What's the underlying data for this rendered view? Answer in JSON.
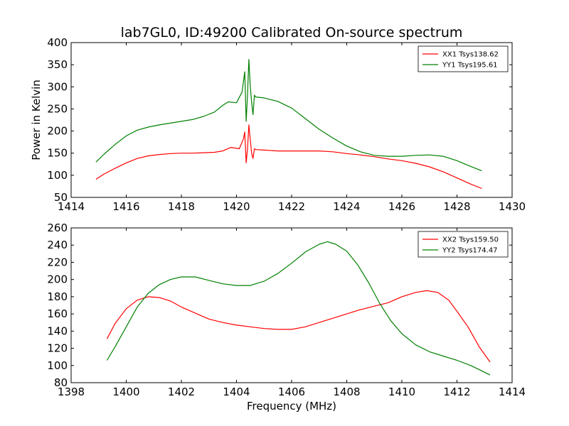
{
  "figure": {
    "title": "lab7GL0, ID:49200 Calibrated On-source spectrum",
    "ylabel": "Power in Kelvin",
    "xlabel": "Frequency (MHz)"
  },
  "chart_data": [
    {
      "type": "line",
      "title": "lab7GL0, ID:49200 Calibrated On-source spectrum",
      "xlabel": "",
      "ylabel": "Power in Kelvin",
      "xlim": [
        1414,
        1430
      ],
      "ylim": [
        50,
        400
      ],
      "xticks": [
        1414,
        1416,
        1418,
        1420,
        1422,
        1424,
        1426,
        1428,
        1430
      ],
      "yticks": [
        50,
        100,
        150,
        200,
        250,
        300,
        350,
        400
      ],
      "legend": "top-right",
      "grid": false,
      "series": [
        {
          "name": "XX1 Tsys138.62",
          "color": "#ff0000",
          "x": [
            1414.9,
            1415.2,
            1415.6,
            1416.0,
            1416.4,
            1416.8,
            1417.2,
            1417.6,
            1418.0,
            1418.4,
            1418.8,
            1419.2,
            1419.5,
            1419.8,
            1420.1,
            1420.25,
            1420.3,
            1420.35,
            1420.4,
            1420.45,
            1420.5,
            1420.55,
            1420.6,
            1420.65,
            1420.7,
            1421.0,
            1421.5,
            1422.0,
            1422.5,
            1423.0,
            1423.5,
            1424.0,
            1424.5,
            1425.0,
            1425.5,
            1426.0,
            1426.5,
            1427.0,
            1427.5,
            1428.0,
            1428.5,
            1428.9
          ],
          "y": [
            91,
            103,
            116,
            128,
            138,
            144,
            147,
            149,
            150,
            150,
            151,
            152,
            155,
            163,
            160,
            182,
            198,
            128,
            160,
            214,
            180,
            150,
            138,
            160,
            158,
            157,
            155,
            155,
            155,
            155,
            153,
            149,
            146,
            142,
            137,
            133,
            127,
            119,
            108,
            94,
            80,
            70
          ]
        },
        {
          "name": "YY1 Tsys195.61",
          "color": "#008000",
          "x": [
            1414.9,
            1415.2,
            1415.6,
            1416.0,
            1416.4,
            1416.8,
            1417.2,
            1417.6,
            1418.0,
            1418.4,
            1418.8,
            1419.2,
            1419.5,
            1419.7,
            1420.0,
            1420.2,
            1420.3,
            1420.35,
            1420.4,
            1420.45,
            1420.5,
            1420.55,
            1420.6,
            1420.65,
            1420.7,
            1421.0,
            1421.5,
            1422.0,
            1422.5,
            1423.0,
            1423.5,
            1424.0,
            1424.5,
            1425.0,
            1425.5,
            1426.0,
            1426.5,
            1427.0,
            1427.5,
            1428.0,
            1428.5,
            1428.9
          ],
          "y": [
            130,
            148,
            170,
            189,
            202,
            209,
            214,
            218,
            222,
            226,
            233,
            243,
            258,
            266,
            264,
            288,
            334,
            222,
            282,
            362,
            300,
            265,
            237,
            281,
            277,
            275,
            267,
            252,
            228,
            204,
            184,
            166,
            153,
            145,
            143,
            143,
            145,
            146,
            143,
            133,
            120,
            110
          ]
        }
      ]
    },
    {
      "type": "line",
      "title": "",
      "xlabel": "Frequency (MHz)",
      "ylabel": "",
      "xlim": [
        1398,
        1414
      ],
      "ylim": [
        80,
        260
      ],
      "xticks": [
        1398,
        1400,
        1402,
        1404,
        1406,
        1408,
        1410,
        1412,
        1414
      ],
      "yticks": [
        80,
        100,
        120,
        140,
        160,
        180,
        200,
        220,
        240,
        260
      ],
      "legend": "top-right",
      "grid": false,
      "series": [
        {
          "name": "XX2 Tsys159.50",
          "color": "#ff0000",
          "x": [
            1399.3,
            1399.6,
            1400.0,
            1400.4,
            1400.8,
            1401.2,
            1401.6,
            1402.0,
            1402.5,
            1403.0,
            1403.5,
            1404.0,
            1404.5,
            1405.0,
            1405.5,
            1406.0,
            1406.5,
            1407.0,
            1407.5,
            1408.0,
            1408.5,
            1409.0,
            1409.5,
            1410.0,
            1410.5,
            1410.9,
            1411.3,
            1411.7,
            1412.0,
            1412.4,
            1412.8,
            1413.2
          ],
          "y": [
            131,
            149,
            166,
            176,
            180,
            179,
            175,
            168,
            161,
            154,
            150,
            147,
            145,
            143,
            142,
            142,
            145,
            150,
            155,
            160,
            165,
            169,
            173,
            180,
            185,
            187,
            185,
            176,
            163,
            145,
            122,
            104
          ]
        },
        {
          "name": "YY2 Tsys174.47",
          "color": "#008000",
          "x": [
            1399.3,
            1399.6,
            1400.0,
            1400.4,
            1400.8,
            1401.2,
            1401.6,
            1402.0,
            1402.5,
            1403.0,
            1403.5,
            1404.0,
            1404.5,
            1405.0,
            1405.5,
            1406.0,
            1406.5,
            1407.0,
            1407.3,
            1407.6,
            1408.0,
            1408.4,
            1408.8,
            1409.2,
            1409.6,
            1410.0,
            1410.5,
            1411.0,
            1411.5,
            1412.0,
            1412.5,
            1413.2
          ],
          "y": [
            106,
            122,
            145,
            168,
            184,
            194,
            200,
            203,
            203,
            199,
            195,
            193,
            193,
            198,
            207,
            219,
            232,
            241,
            244,
            241,
            233,
            217,
            196,
            172,
            152,
            137,
            124,
            116,
            111,
            106,
            100,
            89
          ]
        }
      ]
    }
  ]
}
